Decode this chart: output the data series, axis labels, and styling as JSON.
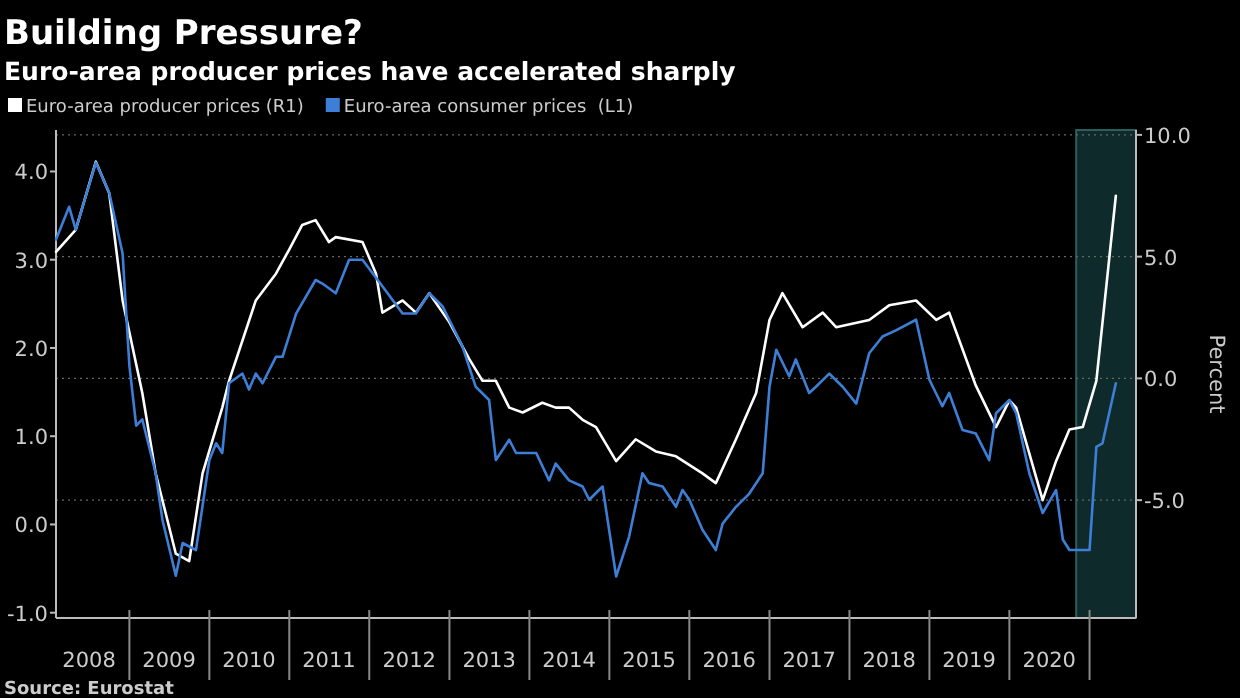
{
  "chart_data": {
    "type": "line",
    "title": "Building Pressure?",
    "subtitle": "Euro-area producer prices have accelerated sharply",
    "y2label": "Percent",
    "annotations": [
      "Source: Eurostat"
    ],
    "legend": "top left",
    "grid": true,
    "xlim": [
      "2008-02",
      "2021-08"
    ],
    "xticks": [
      {
        "value": "2008-07",
        "label": "2008"
      },
      {
        "value": "2009",
        "label": null
      },
      {
        "value": "2009-07",
        "label": "2009"
      },
      {
        "value": "2010",
        "label": null
      },
      {
        "value": "2010-07",
        "label": "2010"
      },
      {
        "value": "2011",
        "label": null
      },
      {
        "value": "2011-07",
        "label": "2011"
      },
      {
        "value": "2012",
        "label": null
      },
      {
        "value": "2012-07",
        "label": "2012"
      },
      {
        "value": "2013",
        "label": null
      },
      {
        "value": "2013-07",
        "label": "2013"
      },
      {
        "value": "2014",
        "label": null
      },
      {
        "value": "2014-07",
        "label": "2014"
      },
      {
        "value": "2015",
        "label": null
      },
      {
        "value": "2015-07",
        "label": "2015"
      },
      {
        "value": "2016",
        "label": null
      },
      {
        "value": "2016-07",
        "label": "2016"
      },
      {
        "value": "2017",
        "label": null
      },
      {
        "value": "2017-07",
        "label": "2017"
      },
      {
        "value": "2018",
        "label": null
      },
      {
        "value": "2018-07",
        "label": "2018"
      },
      {
        "value": "2019",
        "label": null
      },
      {
        "value": "2019-07",
        "label": "2019"
      },
      {
        "value": "2020",
        "label": null
      },
      {
        "value": "2020-07",
        "label": "2020"
      },
      {
        "value": "2021",
        "label": null
      }
    ],
    "ylim": [
      -1.06,
      4.47
    ],
    "yticks": [
      {
        "value": -1,
        "label": "-1.0"
      },
      {
        "value": 0,
        "label": "0.0"
      },
      {
        "value": 1,
        "label": "1.0"
      },
      {
        "value": 2,
        "label": "2.0"
      },
      {
        "value": 3,
        "label": "3.0"
      },
      {
        "value": 4,
        "label": "4.0"
      }
    ],
    "y2lim": [
      -9.84,
      10.2
    ],
    "y2ticks": [
      {
        "value": -5,
        "label": "-5.0"
      },
      {
        "value": 0,
        "label": "0.0"
      },
      {
        "value": 5,
        "label": "5.0"
      },
      {
        "value": 10,
        "label": "10.0"
      }
    ],
    "bands": [
      {
        "axis": "x",
        "from": "2020-11",
        "to": "2021-08",
        "color": "#0e2a2b"
      }
    ],
    "series": [
      {
        "name": "Euro-area producer prices (R1)",
        "color": "#ffffff",
        "axis": "y2",
        "x": [
          "2008-02",
          "2008-05",
          "2008-08",
          "2008-10",
          "2008-12",
          "2009-03",
          "2009-05",
          "2009-08",
          "2009-10",
          "2009-12",
          "2010-03",
          "2010-04",
          "2010-08",
          "2010-11",
          "2011-01",
          "2011-03",
          "2011-05",
          "2011-07",
          "2011-08",
          "2011-12",
          "2012-02",
          "2012-03",
          "2012-06",
          "2012-08",
          "2012-10",
          "2013-01",
          "2013-04",
          "2013-06",
          "2013-08",
          "2013-10",
          "2013-12",
          "2014-03",
          "2014-05",
          "2014-07",
          "2014-09",
          "2014-11",
          "2015-02",
          "2015-05",
          "2015-08",
          "2015-11",
          "2016-03",
          "2016-05",
          "2016-08",
          "2016-11",
          "2017-01",
          "2017-03",
          "2017-06",
          "2017-09",
          "2017-11",
          "2018-04",
          "2018-07",
          "2018-11",
          "2019-02",
          "2019-04",
          "2019-08",
          "2019-11",
          "2020-01",
          "2020-02",
          "2020-06",
          "2020-08",
          "2020-10",
          "2020-12",
          "2021-02",
          "2021-05"
        ],
        "values": [
          5.2,
          6.1,
          8.9,
          7.6,
          3.2,
          -0.6,
          -3.9,
          -7.2,
          -7.5,
          -3.9,
          -1.2,
          -0.1,
          3.2,
          4.3,
          5.3,
          6.3,
          6.5,
          5.6,
          5.8,
          5.6,
          4.3,
          2.7,
          3.2,
          2.7,
          3.5,
          2.3,
          0.8,
          -0.1,
          -0.1,
          -1.2,
          -1.4,
          -1.0,
          -1.2,
          -1.2,
          -1.7,
          -2.0,
          -3.4,
          -2.5,
          -3.0,
          -3.2,
          -3.9,
          -4.3,
          -2.5,
          -0.6,
          2.4,
          3.5,
          2.1,
          2.7,
          2.1,
          2.4,
          3.0,
          3.2,
          2.4,
          2.7,
          -0.3,
          -2.0,
          -0.9,
          -1.2,
          -5.0,
          -3.4,
          -2.1,
          -2.0,
          -0.1,
          7.5
        ]
      },
      {
        "name": "Euro-area consumer prices  (L1)",
        "color": "#3d7fd6",
        "axis": "y",
        "x": [
          "2008-02",
          "2008-04",
          "2008-05",
          "2008-08",
          "2008-10",
          "2008-12",
          "2009-01",
          "2009-02",
          "2009-03",
          "2009-05",
          "2009-06",
          "2009-08",
          "2009-09",
          "2009-11",
          "2010-01",
          "2010-02",
          "2010-03",
          "2010-04",
          "2010-06",
          "2010-07",
          "2010-08",
          "2010-09",
          "2010-11",
          "2010-12",
          "2011-02",
          "2011-05",
          "2011-06",
          "2011-08",
          "2011-10",
          "2011-12",
          "2012-03",
          "2012-06",
          "2012-08",
          "2012-10",
          "2012-12",
          "2013-03",
          "2013-05",
          "2013-07",
          "2013-08",
          "2013-10",
          "2013-11",
          "2014-02",
          "2014-04",
          "2014-05",
          "2014-07",
          "2014-09",
          "2014-10",
          "2014-12",
          "2015-02",
          "2015-04",
          "2015-06",
          "2015-07",
          "2015-09",
          "2015-11",
          "2015-12",
          "2016-01",
          "2016-03",
          "2016-05",
          "2016-06",
          "2016-08",
          "2016-10",
          "2016-12",
          "2017-01",
          "2017-02",
          "2017-04",
          "2017-05",
          "2017-07",
          "2017-08",
          "2017-10",
          "2017-12",
          "2018-02",
          "2018-04",
          "2018-06",
          "2018-08",
          "2018-11",
          "2019-01",
          "2019-03",
          "2019-04",
          "2019-06",
          "2019-08",
          "2019-10",
          "2019-11",
          "2020-01",
          "2020-02",
          "2020-04",
          "2020-06",
          "2020-08",
          "2020-09",
          "2020-10",
          "2021-01",
          "2021-02",
          "2021-03",
          "2021-05"
        ],
        "values": [
          3.23,
          3.6,
          3.34,
          4.1,
          3.76,
          3.07,
          1.8,
          1.12,
          1.19,
          0.58,
          0.05,
          -0.58,
          -0.21,
          -0.29,
          0.73,
          0.92,
          0.81,
          1.6,
          1.71,
          1.53,
          1.71,
          1.6,
          1.9,
          1.9,
          2.39,
          2.77,
          2.73,
          2.62,
          3.0,
          3.0,
          2.7,
          2.39,
          2.39,
          2.62,
          2.47,
          2.02,
          1.56,
          1.41,
          0.73,
          0.96,
          0.81,
          0.81,
          0.5,
          0.69,
          0.5,
          0.43,
          0.28,
          0.43,
          -0.59,
          -0.14,
          0.58,
          0.47,
          0.43,
          0.2,
          0.39,
          0.28,
          -0.06,
          -0.29,
          0.01,
          0.2,
          0.35,
          0.58,
          1.56,
          1.98,
          1.68,
          1.87,
          1.49,
          1.56,
          1.71,
          1.56,
          1.37,
          1.94,
          2.13,
          2.2,
          2.32,
          1.64,
          1.34,
          1.49,
          1.07,
          1.03,
          0.73,
          1.26,
          1.41,
          1.26,
          0.58,
          0.13,
          0.39,
          -0.17,
          -0.29,
          -0.29,
          0.88,
          0.92,
          1.6
        ]
      }
    ]
  }
}
